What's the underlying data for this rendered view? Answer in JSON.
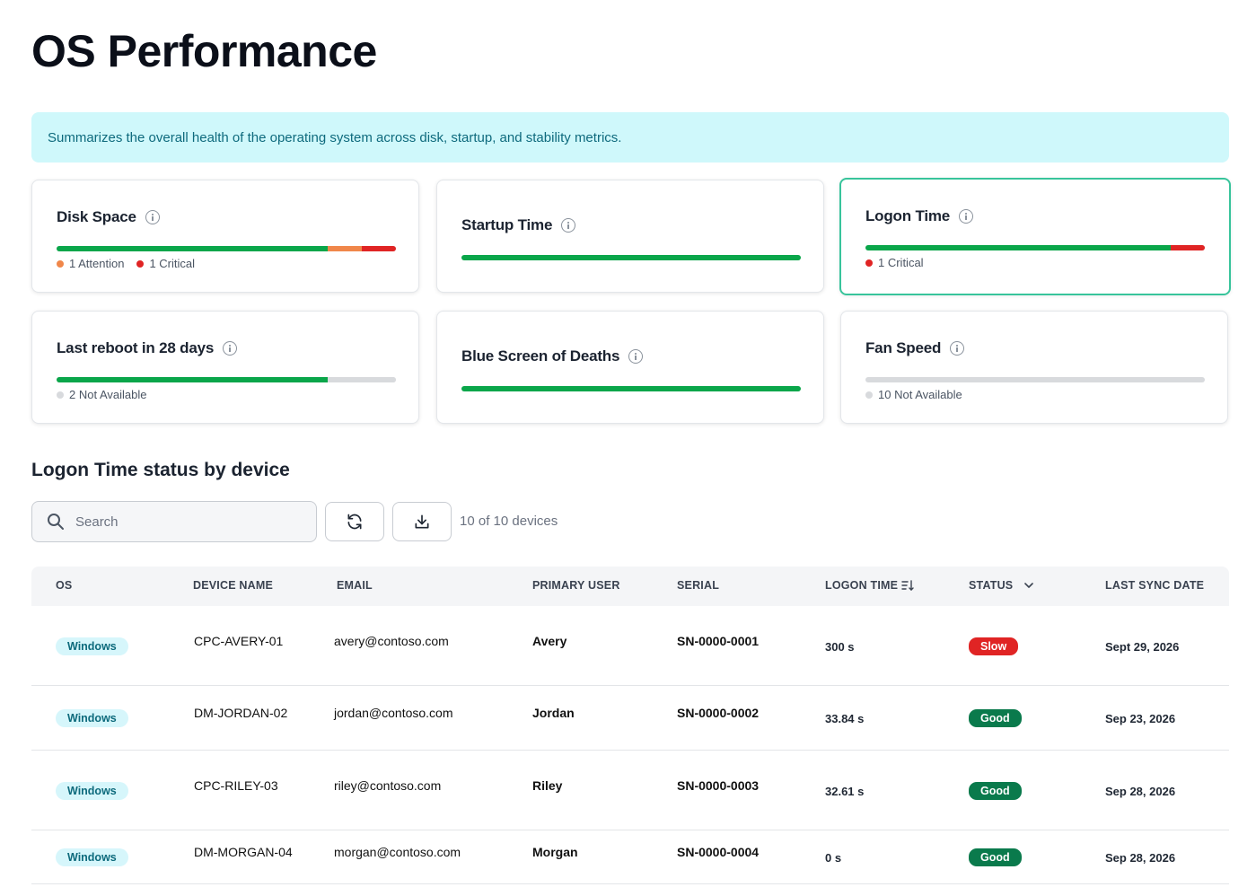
{
  "page": {
    "title": "OS Performance"
  },
  "banner": {
    "text": "Summarizes the overall health of the operating system across disk, startup, and stability metrics."
  },
  "colors": {
    "good": "#0aa64a",
    "attention": "#f0874a",
    "critical": "#e02424",
    "not_available": "#d8dadd",
    "selected_border": "#38c49b"
  },
  "cards": [
    {
      "title": "Disk Space",
      "selected": false,
      "segments": [
        {
          "status": "good",
          "fraction": 0.8
        },
        {
          "status": "attention",
          "fraction": 0.1
        },
        {
          "status": "critical",
          "fraction": 0.1
        }
      ],
      "legend": [
        {
          "status": "attention",
          "label": "1 Attention"
        },
        {
          "status": "critical",
          "label": "1 Critical"
        }
      ]
    },
    {
      "title": "Startup Time",
      "selected": false,
      "segments": [
        {
          "status": "good",
          "fraction": 1.0
        }
      ],
      "legend": []
    },
    {
      "title": "Logon Time",
      "selected": true,
      "segments": [
        {
          "status": "good",
          "fraction": 0.9
        },
        {
          "status": "critical",
          "fraction": 0.1
        }
      ],
      "legend": [
        {
          "status": "critical",
          "label": "1 Critical"
        }
      ]
    },
    {
      "title": "Last reboot in 28 days",
      "selected": false,
      "segments": [
        {
          "status": "good",
          "fraction": 0.8
        },
        {
          "status": "not_available",
          "fraction": 0.2
        }
      ],
      "legend": [
        {
          "status": "not_available",
          "label": "2 Not Available"
        }
      ]
    },
    {
      "title": "Blue Screen of Deaths",
      "selected": false,
      "segments": [
        {
          "status": "good",
          "fraction": 1.0
        }
      ],
      "legend": []
    },
    {
      "title": "Fan Speed",
      "selected": false,
      "segments": [
        {
          "status": "not_available",
          "fraction": 1.0
        }
      ],
      "legend": [
        {
          "status": "not_available",
          "label": "10 Not Available"
        }
      ]
    }
  ],
  "section": {
    "title": "Logon Time status by device"
  },
  "toolbar": {
    "search_placeholder": "Search",
    "count_text": "10 of 10 devices",
    "refresh_icon": "refresh-icon",
    "download_icon": "download-icon"
  },
  "table": {
    "headers": {
      "os": "OS",
      "device": "DEVICE NAME",
      "email": "EMAIL",
      "user": "PRIMARY USER",
      "serial": "SERIAL",
      "logon": "LOGON TIME",
      "status": "STATUS",
      "sync": "LAST SYNC DATE"
    },
    "rows": [
      {
        "os": "Windows",
        "device": "CPC-AVERY-01",
        "email": "avery@contoso.com",
        "user": "Avery",
        "serial": "SN-0000-0001",
        "logon": "300 s",
        "status": "Slow",
        "status_color": "#e02424",
        "sync": "Sept 29, 2026"
      },
      {
        "os": "Windows",
        "device": "DM-JORDAN-02",
        "email": "jordan@contoso.com",
        "user": "Jordan",
        "serial": "SN-0000-0002",
        "logon": "33.84 s",
        "status": "Good",
        "status_color": "#0a7a4c",
        "sync": "Sep 23, 2026"
      },
      {
        "os": "Windows",
        "device": "CPC-RILEY-03",
        "email": "riley@contoso.com",
        "user": "Riley",
        "serial": "SN-0000-0003",
        "logon": "32.61 s",
        "status": "Good",
        "status_color": "#0a7a4c",
        "sync": "Sep 28, 2026"
      },
      {
        "os": "Windows",
        "device": "DM-MORGAN-04",
        "email": "morgan@contoso.com",
        "user": "Morgan",
        "serial": "SN-0000-0004",
        "logon": "0 s",
        "status": "Good",
        "status_color": "#0a7a4c",
        "sync": "Sep 28, 2026"
      }
    ]
  }
}
